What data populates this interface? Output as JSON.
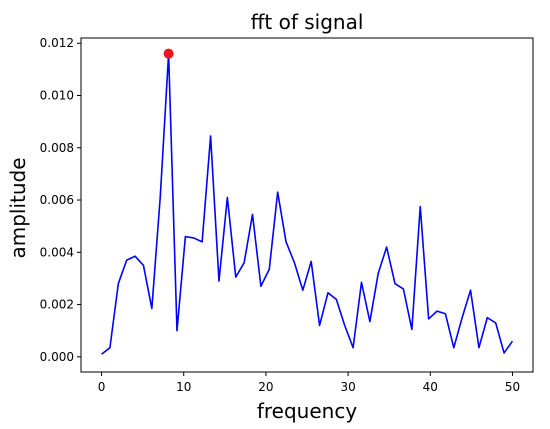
{
  "chart_data": {
    "type": "line",
    "title": "fft of signal",
    "xlabel": "frequency",
    "ylabel": "amplitude",
    "xlim": [
      -2.5,
      52.5
    ],
    "ylim": [
      -0.00058,
      0.0122
    ],
    "xticks": [
      0,
      10,
      20,
      30,
      40,
      50
    ],
    "yticks": [
      0.0,
      0.002,
      0.004,
      0.006,
      0.008,
      0.01,
      0.012
    ],
    "ytick_labels": [
      "0.000",
      "0.002",
      "0.004",
      "0.006",
      "0.008",
      "0.010",
      "0.012"
    ],
    "grid": false,
    "legend": "none",
    "series": [
      {
        "color": "#0000ff",
        "x": [
          0,
          1.02,
          2.04,
          3.06,
          4.08,
          5.1,
          6.12,
          7.14,
          8.16,
          9.18,
          10.2,
          11.22,
          12.24,
          13.27,
          14.29,
          15.31,
          16.33,
          17.35,
          18.37,
          19.39,
          20.41,
          21.43,
          22.45,
          23.47,
          24.49,
          25.51,
          26.53,
          27.55,
          28.57,
          29.59,
          30.61,
          31.63,
          32.65,
          33.67,
          34.69,
          35.71,
          36.73,
          37.76,
          38.78,
          39.8,
          40.82,
          41.84,
          42.86,
          43.88,
          44.9,
          45.92,
          46.94,
          47.96,
          48.98,
          50
        ],
        "values": [
          0.0001,
          0.00035,
          0.0028,
          0.0037,
          0.00385,
          0.0035,
          0.00185,
          0.0061,
          0.0116,
          0.001,
          0.0046,
          0.00455,
          0.0044,
          0.00845,
          0.0029,
          0.0061,
          0.00305,
          0.0036,
          0.00545,
          0.0027,
          0.00335,
          0.0063,
          0.0044,
          0.0036,
          0.00255,
          0.00365,
          0.0012,
          0.00245,
          0.0022,
          0.0012,
          0.00035,
          0.00285,
          0.00135,
          0.0032,
          0.0042,
          0.0028,
          0.0026,
          0.00105,
          0.00575,
          0.00145,
          0.00175,
          0.00165,
          0.00035,
          0.0015,
          0.00255,
          0.00035,
          0.0015,
          0.0013,
          0.00015,
          0.0006
        ]
      }
    ],
    "highlight_point": {
      "x": 8.16,
      "y": 0.0116,
      "color": "#e8161d"
    }
  }
}
